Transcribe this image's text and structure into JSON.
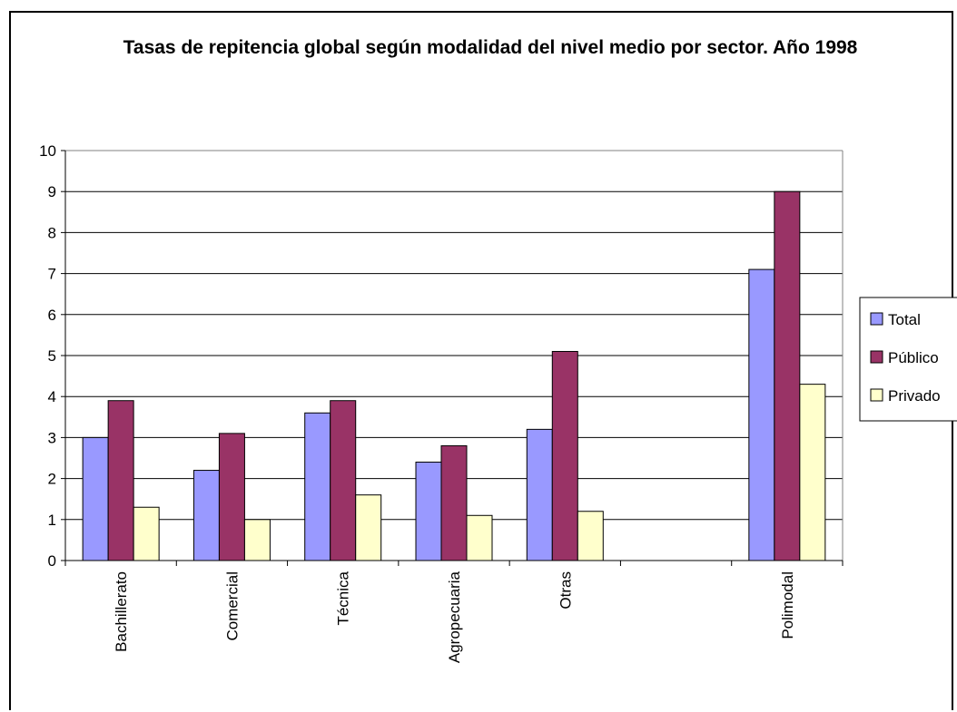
{
  "chart_data": {
    "type": "bar",
    "title": "Tasas de repitencia global según modalidad del nivel medio por sector. Año 1998",
    "xlabel": "",
    "ylabel": "",
    "ylim": [
      0,
      10
    ],
    "yticks": [
      "0",
      "1",
      "2",
      "3",
      "4",
      "5",
      "6",
      "7",
      "8",
      "9",
      "10"
    ],
    "grid": true,
    "legend_position": "right",
    "categories": [
      "Bachillerato",
      "Comercial",
      "Técnica",
      "Agropecuaria",
      "Otras",
      "",
      "Polimodal"
    ],
    "series": [
      {
        "name": "Total",
        "color": "#9999FF",
        "values": [
          3.0,
          2.2,
          3.6,
          2.4,
          3.2,
          null,
          7.1
        ]
      },
      {
        "name": "Público",
        "color": "#993366",
        "values": [
          3.9,
          3.1,
          3.9,
          2.8,
          5.1,
          null,
          9.0
        ]
      },
      {
        "name": "Privado",
        "color": "#FFFFCC",
        "values": [
          1.3,
          1.0,
          1.6,
          1.1,
          1.2,
          null,
          4.3
        ]
      }
    ]
  }
}
